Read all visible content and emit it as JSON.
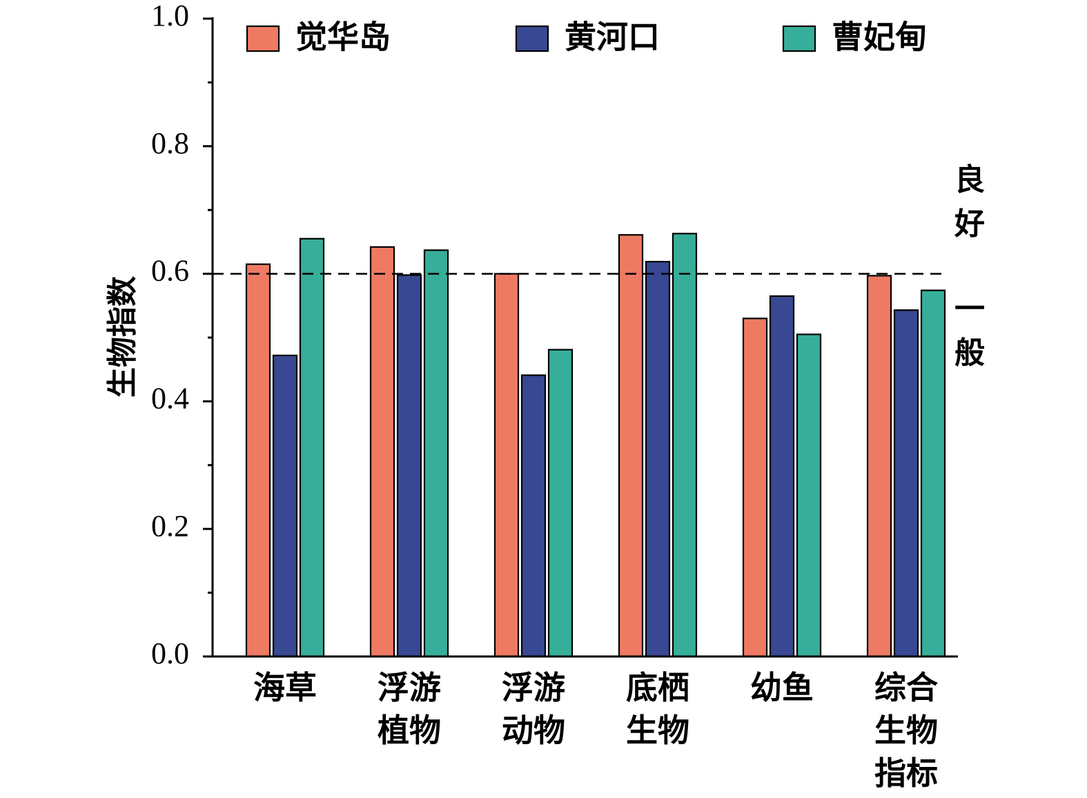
{
  "chart_data": {
    "type": "bar",
    "title": "",
    "xlabel": "",
    "ylabel": "生物指数",
    "ylim": [
      0,
      1.0
    ],
    "yticks": [
      "0.0",
      "0.2",
      "0.4",
      "0.6",
      "0.8",
      "1.0"
    ],
    "grid": false,
    "legend_position": "top",
    "categories": [
      [
        "海草"
      ],
      [
        "浮游",
        "植物"
      ],
      [
        "浮游",
        "动物"
      ],
      [
        "底栖",
        "生物"
      ],
      [
        "幼鱼"
      ],
      [
        "综合",
        "生物",
        "指标"
      ]
    ],
    "series": [
      {
        "name": "觉华岛",
        "color": "#ee7a63",
        "values": [
          0.615,
          0.642,
          0.6,
          0.661,
          0.53,
          0.597
        ]
      },
      {
        "name": "黄河口",
        "color": "#384892",
        "values": [
          0.472,
          0.598,
          0.441,
          0.619,
          0.565,
          0.543
        ]
      },
      {
        "name": "曹妃甸",
        "color": "#37ae99",
        "values": [
          0.655,
          0.637,
          0.481,
          0.663,
          0.505,
          0.574
        ]
      }
    ],
    "reference_line": {
      "value": 0.6,
      "style": "dashed"
    },
    "annotations": {
      "above": [
        "良",
        "好"
      ],
      "below": [
        "一",
        "般"
      ]
    }
  }
}
